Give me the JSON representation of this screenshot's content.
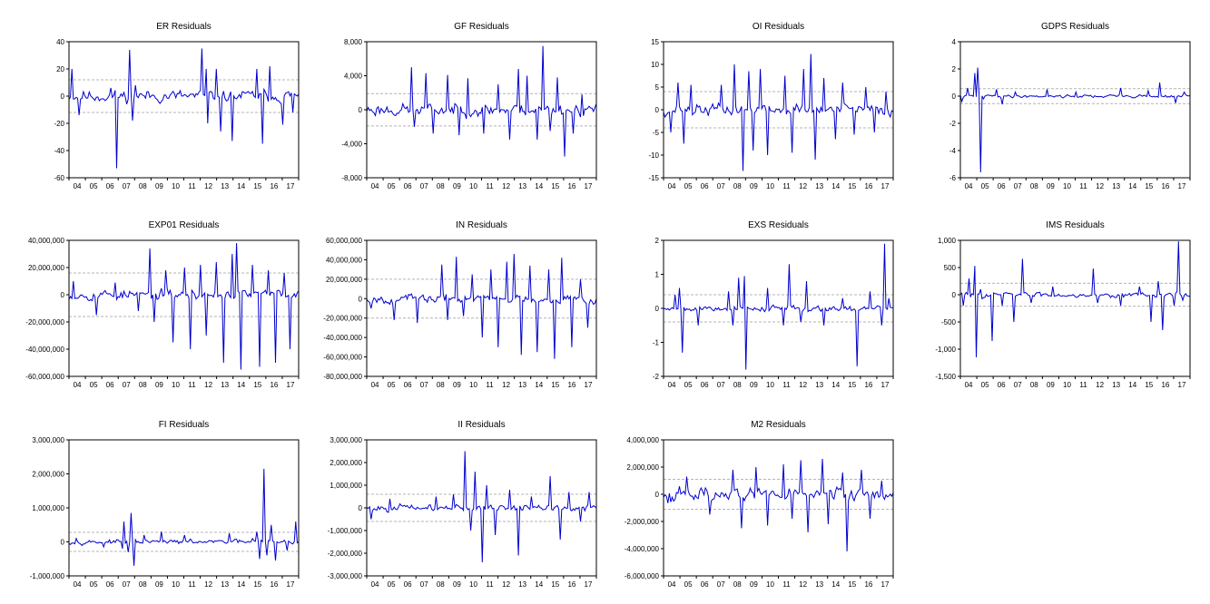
{
  "figure": {
    "line_color": "#0000cc",
    "band_color": "#b4b4b4"
  },
  "chart_data": [
    {
      "type": "line",
      "title": "ER Residuals",
      "seed": 11,
      "yticks": [
        40,
        20,
        0,
        -20,
        -40,
        -60
      ],
      "ytick_labels": [
        "40",
        "20",
        "0",
        "-20",
        "-40",
        "-60"
      ],
      "ylim": [
        -60,
        40
      ],
      "band": [
        12,
        -12
      ],
      "scale": 6,
      "xtick_labels": [
        "04",
        "05",
        "06",
        "07",
        "08",
        "09",
        "10",
        "11",
        "12",
        "13",
        "14",
        "15",
        "16",
        "17"
      ],
      "spikes": [
        [
          0.01,
          20
        ],
        [
          0.045,
          -14
        ],
        [
          0.18,
          6
        ],
        [
          0.21,
          -53
        ],
        [
          0.265,
          34
        ],
        [
          0.275,
          -18
        ],
        [
          0.29,
          8
        ],
        [
          0.58,
          35
        ],
        [
          0.6,
          20
        ],
        [
          0.605,
          -20
        ],
        [
          0.64,
          20
        ],
        [
          0.66,
          -26
        ],
        [
          0.71,
          -33
        ],
        [
          0.82,
          20
        ],
        [
          0.845,
          -35
        ],
        [
          0.875,
          22
        ],
        [
          0.93,
          -21
        ],
        [
          0.975,
          -12
        ]
      ]
    },
    {
      "type": "line",
      "title": "GF Residuals",
      "seed": 23,
      "yticks": [
        8000,
        4000,
        0,
        -4000,
        -8000
      ],
      "ytick_labels": [
        "8,000",
        "4,000",
        "0",
        "-4,000",
        "-8,000"
      ],
      "ylim": [
        -8000,
        8000
      ],
      "band": [
        1900,
        -1900
      ],
      "scale": 1000,
      "xtick_labels": [
        "04",
        "05",
        "06",
        "07",
        "08",
        "09",
        "10",
        "11",
        "12",
        "13",
        "14",
        "15",
        "16",
        "17"
      ],
      "spikes": [
        [
          0.195,
          5000
        ],
        [
          0.21,
          -2000
        ],
        [
          0.26,
          4300
        ],
        [
          0.29,
          -2800
        ],
        [
          0.35,
          4100
        ],
        [
          0.4,
          -3000
        ],
        [
          0.44,
          3700
        ],
        [
          0.51,
          -2800
        ],
        [
          0.57,
          3000
        ],
        [
          0.62,
          -3500
        ],
        [
          0.66,
          4800
        ],
        [
          0.7,
          4000
        ],
        [
          0.74,
          -3500
        ],
        [
          0.77,
          7500
        ],
        [
          0.8,
          -2500
        ],
        [
          0.83,
          3800
        ],
        [
          0.86,
          -5500
        ],
        [
          0.9,
          -2800
        ],
        [
          0.94,
          1800
        ]
      ]
    },
    {
      "type": "line",
      "title": "OI Residuals",
      "seed": 37,
      "yticks": [
        15,
        10,
        5,
        0,
        -5,
        -10,
        -15
      ],
      "ytick_labels": [
        "15",
        "10",
        "5",
        "0",
        "-5",
        "-10",
        "-15"
      ],
      "ylim": [
        -15,
        15
      ],
      "band": [
        4,
        -4
      ],
      "scale": 1.8,
      "xtick_labels": [
        "04",
        "05",
        "06",
        "07",
        "08",
        "09",
        "10",
        "11",
        "12",
        "13",
        "14",
        "15",
        "16",
        "17"
      ],
      "spikes": [
        [
          0.03,
          -5
        ],
        [
          0.06,
          6
        ],
        [
          0.085,
          -7.5
        ],
        [
          0.12,
          5.5
        ],
        [
          0.25,
          5.5
        ],
        [
          0.31,
          10
        ],
        [
          0.345,
          -13.5
        ],
        [
          0.37,
          8.5
        ],
        [
          0.39,
          -9
        ],
        [
          0.42,
          9
        ],
        [
          0.45,
          -10
        ],
        [
          0.53,
          7.5
        ],
        [
          0.56,
          -9.5
        ],
        [
          0.61,
          9
        ],
        [
          0.64,
          12.3
        ],
        [
          0.66,
          -11
        ],
        [
          0.7,
          7
        ],
        [
          0.75,
          -6.5
        ],
        [
          0.78,
          6
        ],
        [
          0.83,
          -5.5
        ],
        [
          0.88,
          5
        ],
        [
          0.92,
          -5
        ],
        [
          0.97,
          4
        ]
      ]
    },
    {
      "type": "line",
      "title": "GDPS Residuals",
      "seed": 41,
      "yticks": [
        4,
        2,
        0,
        -2,
        -4,
        -6
      ],
      "ytick_labels": [
        "4",
        "2",
        "0",
        "-2",
        "-4",
        "-6"
      ],
      "ylim": [
        -6,
        4
      ],
      "band": [
        0.55,
        -0.55
      ],
      "scale": 0.15,
      "xtick_labels": [
        "04",
        "05",
        "06",
        "07",
        "08",
        "09",
        "10",
        "11",
        "12",
        "13",
        "14",
        "15",
        "16",
        "17"
      ],
      "spikes": [
        [
          0.005,
          -0.4
        ],
        [
          0.03,
          0.6
        ],
        [
          0.06,
          1.7
        ],
        [
          0.075,
          2.1
        ],
        [
          0.085,
          -5.6
        ],
        [
          0.1,
          -0.2
        ],
        [
          0.16,
          0.5
        ],
        [
          0.18,
          -0.6
        ],
        [
          0.24,
          0.3
        ],
        [
          0.38,
          0.5
        ],
        [
          0.5,
          0.3
        ],
        [
          0.7,
          0.6
        ],
        [
          0.82,
          0.4
        ],
        [
          0.87,
          1.0
        ],
        [
          0.94,
          -0.5
        ],
        [
          0.975,
          0.3
        ]
      ]
    },
    {
      "type": "line",
      "title": "EXP01 Residuals",
      "seed": 53,
      "yticks": [
        40000000,
        20000000,
        0,
        -20000000,
        -40000000,
        -60000000
      ],
      "ytick_labels": [
        "40,000,000",
        "20,000,000",
        "0",
        "-20,000,000",
        "-40,000,000",
        "-60,000,000"
      ],
      "ylim": [
        -60000000,
        40000000
      ],
      "band": [
        16000000,
        -16000000
      ],
      "scale": 5000000,
      "xtick_labels": [
        "04",
        "05",
        "06",
        "07",
        "08",
        "09",
        "10",
        "11",
        "12",
        "13",
        "14",
        "15",
        "16",
        "17"
      ],
      "spikes": [
        [
          0.02,
          10000000
        ],
        [
          0.12,
          -15000000
        ],
        [
          0.2,
          9000000
        ],
        [
          0.3,
          -12000000
        ],
        [
          0.35,
          34000000
        ],
        [
          0.37,
          -20000000
        ],
        [
          0.42,
          18000000
        ],
        [
          0.45,
          -35000000
        ],
        [
          0.5,
          20000000
        ],
        [
          0.53,
          -40000000
        ],
        [
          0.57,
          22000000
        ],
        [
          0.6,
          -30000000
        ],
        [
          0.64,
          24000000
        ],
        [
          0.67,
          -50000000
        ],
        [
          0.71,
          30000000
        ],
        [
          0.73,
          38000000
        ],
        [
          0.75,
          -55000000
        ],
        [
          0.8,
          22000000
        ],
        [
          0.83,
          -53000000
        ],
        [
          0.87,
          18000000
        ],
        [
          0.9,
          -50000000
        ],
        [
          0.94,
          16000000
        ],
        [
          0.96,
          -40000000
        ]
      ]
    },
    {
      "type": "line",
      "title": "IN Residuals",
      "seed": 67,
      "yticks": [
        60000000,
        40000000,
        20000000,
        0,
        -20000000,
        -40000000,
        -60000000,
        -80000000
      ],
      "ytick_labels": [
        "60,000,000",
        "40,000,000",
        "20,000,000",
        "0",
        "-20,000,000",
        "-40,000,000",
        "-60,000,000",
        "-80,000,000"
      ],
      "ylim": [
        -80000000,
        60000000
      ],
      "band": [
        20000000,
        -20000000
      ],
      "scale": 6000000,
      "xtick_labels": [
        "04",
        "05",
        "06",
        "07",
        "08",
        "09",
        "10",
        "11",
        "12",
        "13",
        "14",
        "15",
        "16",
        "17"
      ],
      "spikes": [
        [
          0.02,
          -10000000
        ],
        [
          0.12,
          -22000000
        ],
        [
          0.22,
          -25000000
        ],
        [
          0.33,
          35000000
        ],
        [
          0.35,
          -22000000
        ],
        [
          0.39,
          43000000
        ],
        [
          0.42,
          -18000000
        ],
        [
          0.46,
          25000000
        ],
        [
          0.5,
          -40000000
        ],
        [
          0.54,
          30000000
        ],
        [
          0.57,
          -50000000
        ],
        [
          0.61,
          38000000
        ],
        [
          0.64,
          46000000
        ],
        [
          0.67,
          -58000000
        ],
        [
          0.71,
          34000000
        ],
        [
          0.74,
          -55000000
        ],
        [
          0.79,
          30000000
        ],
        [
          0.82,
          -62000000
        ],
        [
          0.85,
          42000000
        ],
        [
          0.89,
          -50000000
        ],
        [
          0.93,
          20000000
        ],
        [
          0.96,
          -30000000
        ]
      ]
    },
    {
      "type": "line",
      "title": "EXS Residuals",
      "seed": 79,
      "yticks": [
        2,
        1,
        0,
        -1,
        -2
      ],
      "ytick_labels": [
        "2",
        "1",
        "0",
        "-1",
        "-2"
      ],
      "ylim": [
        -2,
        2
      ],
      "band": [
        0.4,
        -0.4
      ],
      "scale": 0.12,
      "xtick_labels": [
        "04",
        "05",
        "06",
        "07",
        "08",
        "09",
        "10",
        "11",
        "12",
        "13",
        "14",
        "15",
        "16",
        "17"
      ],
      "spikes": [
        [
          0.05,
          0.4
        ],
        [
          0.07,
          0.6
        ],
        [
          0.08,
          -1.3
        ],
        [
          0.15,
          -0.5
        ],
        [
          0.28,
          0.5
        ],
        [
          0.3,
          -0.5
        ],
        [
          0.33,
          0.9
        ],
        [
          0.35,
          0.95
        ],
        [
          0.36,
          -1.8
        ],
        [
          0.45,
          0.6
        ],
        [
          0.52,
          -0.5
        ],
        [
          0.55,
          1.3
        ],
        [
          0.6,
          -0.4
        ],
        [
          0.62,
          0.8
        ],
        [
          0.7,
          -0.5
        ],
        [
          0.78,
          0.3
        ],
        [
          0.84,
          -1.7
        ],
        [
          0.9,
          0.5
        ],
        [
          0.95,
          -0.5
        ],
        [
          0.96,
          1.9
        ],
        [
          0.98,
          0.3
        ]
      ]
    },
    {
      "type": "line",
      "title": "IMS Residuals",
      "seed": 83,
      "yticks": [
        1000,
        500,
        0,
        -500,
        -1000,
        -1500
      ],
      "ytick_labels": [
        "1,000",
        "500",
        "0",
        "-500",
        "-1,000",
        "-1,500"
      ],
      "ylim": [
        -1500,
        1000
      ],
      "band": [
        210,
        -210
      ],
      "scale": 60,
      "xtick_labels": [
        "04",
        "05",
        "06",
        "07",
        "08",
        "09",
        "10",
        "11",
        "12",
        "13",
        "14",
        "15",
        "16",
        "17"
      ],
      "spikes": [
        [
          0.01,
          -200
        ],
        [
          0.04,
          300
        ],
        [
          0.06,
          530
        ],
        [
          0.07,
          -1150
        ],
        [
          0.09,
          100
        ],
        [
          0.14,
          -850
        ],
        [
          0.18,
          -200
        ],
        [
          0.23,
          -500
        ],
        [
          0.27,
          660
        ],
        [
          0.31,
          -150
        ],
        [
          0.4,
          150
        ],
        [
          0.58,
          480
        ],
        [
          0.6,
          -150
        ],
        [
          0.7,
          -200
        ],
        [
          0.78,
          150
        ],
        [
          0.83,
          -500
        ],
        [
          0.86,
          250
        ],
        [
          0.88,
          -650
        ],
        [
          0.93,
          -200
        ],
        [
          0.95,
          980
        ],
        [
          0.97,
          -100
        ]
      ]
    },
    {
      "type": "line",
      "title": "FI Residuals",
      "seed": 97,
      "yticks": [
        3000000,
        2000000,
        1000000,
        0,
        -1000000
      ],
      "ytick_labels": [
        "3,000,000",
        "2,000,000",
        "1,000,000",
        "0",
        "-1,000,000"
      ],
      "ylim": [
        -1000000,
        3000000
      ],
      "band": [
        280000,
        -280000
      ],
      "scale": 80000,
      "xtick_labels": [
        "04",
        "05",
        "06",
        "07",
        "08",
        "09",
        "10",
        "11",
        "12",
        "13",
        "14",
        "15",
        "16",
        "17"
      ],
      "spikes": [
        [
          0.03,
          100000
        ],
        [
          0.15,
          -150000
        ],
        [
          0.23,
          -200000
        ],
        [
          0.24,
          600000
        ],
        [
          0.26,
          -300000
        ],
        [
          0.27,
          850000
        ],
        [
          0.28,
          -700000
        ],
        [
          0.33,
          200000
        ],
        [
          0.4,
          300000
        ],
        [
          0.5,
          200000
        ],
        [
          0.7,
          250000
        ],
        [
          0.8,
          100000
        ],
        [
          0.82,
          300000
        ],
        [
          0.83,
          -500000
        ],
        [
          0.85,
          2150000
        ],
        [
          0.86,
          -400000
        ],
        [
          0.88,
          500000
        ],
        [
          0.9,
          -550000
        ],
        [
          0.95,
          -250000
        ],
        [
          0.99,
          600000
        ]
      ]
    },
    {
      "type": "line",
      "title": "II Residuals",
      "seed": 101,
      "yticks": [
        3000000,
        2000000,
        1000000,
        0,
        -1000000,
        -2000000,
        -3000000
      ],
      "ytick_labels": [
        "3,000,000",
        "2,000,000",
        "1,000,000",
        "0",
        "-1,000,000",
        "-2,000,000",
        "-3,000,000"
      ],
      "ylim": [
        -3000000,
        3000000
      ],
      "band": [
        600000,
        -600000
      ],
      "scale": 200000,
      "xtick_labels": [
        "04",
        "05",
        "06",
        "07",
        "08",
        "09",
        "10",
        "11",
        "12",
        "13",
        "14",
        "15",
        "16",
        "17"
      ],
      "spikes": [
        [
          0.02,
          -500000
        ],
        [
          0.1,
          400000
        ],
        [
          0.3,
          500000
        ],
        [
          0.38,
          600000
        ],
        [
          0.43,
          2500000
        ],
        [
          0.45,
          -1000000
        ],
        [
          0.47,
          1600000
        ],
        [
          0.5,
          -2400000
        ],
        [
          0.52,
          1000000
        ],
        [
          0.56,
          -1200000
        ],
        [
          0.62,
          800000
        ],
        [
          0.66,
          -2100000
        ],
        [
          0.72,
          500000
        ],
        [
          0.8,
          1400000
        ],
        [
          0.84,
          -1400000
        ],
        [
          0.88,
          700000
        ],
        [
          0.93,
          -600000
        ],
        [
          0.97,
          700000
        ]
      ]
    },
    {
      "type": "line",
      "title": "M2 Residuals",
      "seed": 113,
      "yticks": [
        4000000,
        2000000,
        0,
        -2000000,
        -4000000,
        -6000000
      ],
      "ytick_labels": [
        "4,000,000",
        "2,000,000",
        "0",
        "-2,000,000",
        "-4,000,000",
        "-6,000,000"
      ],
      "ylim": [
        -6000000,
        4000000
      ],
      "band": [
        1100000,
        -1100000
      ],
      "scale": 700000,
      "xtick_labels": [
        "04",
        "05",
        "06",
        "07",
        "08",
        "09",
        "10",
        "11",
        "12",
        "13",
        "14",
        "15",
        "16",
        "17"
      ],
      "spikes": [
        [
          0.1,
          1300000
        ],
        [
          0.2,
          -1500000
        ],
        [
          0.3,
          1800000
        ],
        [
          0.34,
          -2500000
        ],
        [
          0.4,
          2000000
        ],
        [
          0.45,
          -2300000
        ],
        [
          0.52,
          2200000
        ],
        [
          0.56,
          -1800000
        ],
        [
          0.6,
          2500000
        ],
        [
          0.63,
          -2800000
        ],
        [
          0.69,
          2600000
        ],
        [
          0.72,
          -2200000
        ],
        [
          0.78,
          1600000
        ],
        [
          0.8,
          -4200000
        ],
        [
          0.86,
          1800000
        ],
        [
          0.9,
          -1800000
        ],
        [
          0.95,
          1000000
        ]
      ]
    }
  ]
}
